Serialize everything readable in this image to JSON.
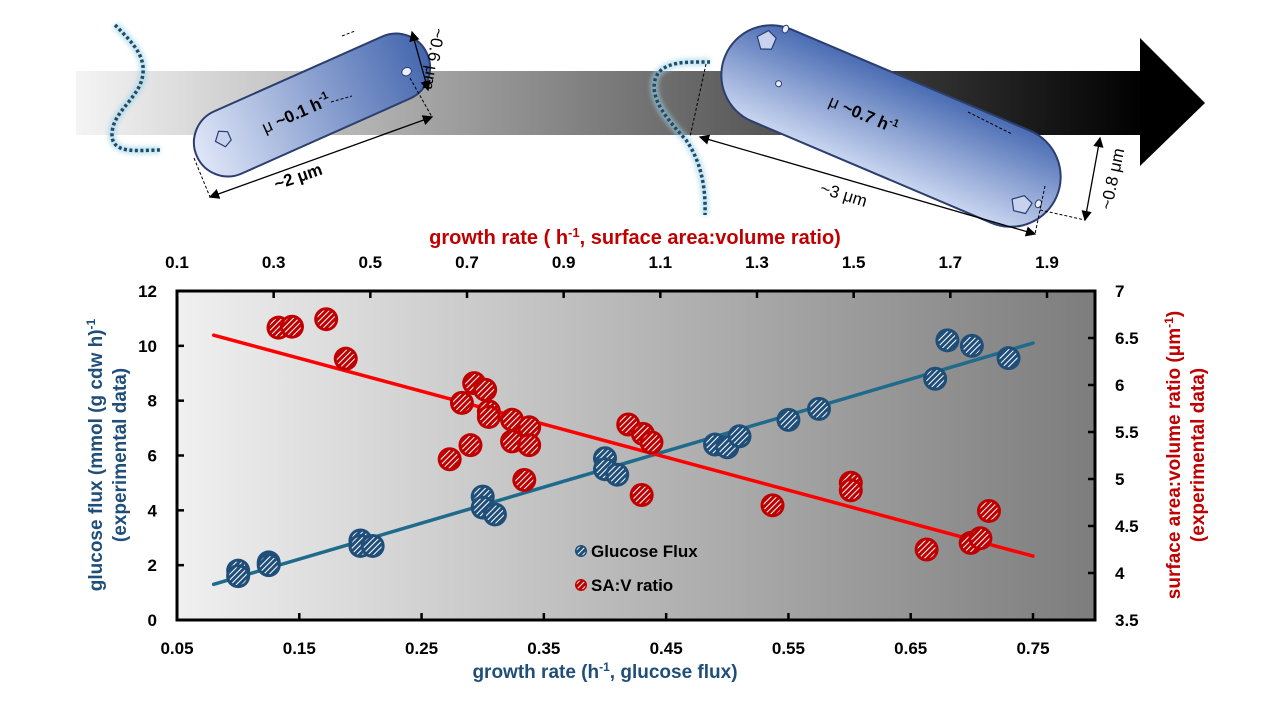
{
  "illustration": {
    "cell_small": {
      "growth_label_prefix": "μ ",
      "growth_label_value": "~0.1 h",
      "growth_label_sup": "-1",
      "length_label": "~2 μm",
      "width_label": "~0.6 μm"
    },
    "cell_large": {
      "growth_label_prefix": "μ ",
      "growth_label_value": "~0.7 h",
      "growth_label_sup": "-1",
      "length_label": "~3 μm",
      "width_label": "~0.8 μm"
    },
    "colors": {
      "cell_fill_light": "#d3dcf3",
      "cell_fill_dark": "#3f62a8",
      "cell_outline": "#2c3e6e",
      "flagellum": "#1e4c66",
      "flagellum_glow": "#9fd3e8",
      "arrow_start": "#f2f2f2",
      "arrow_end": "#000000"
    }
  },
  "chart_data": {
    "type": "scatter",
    "title": "",
    "xlabel": "growth rate (h-1, glucose flux)",
    "xlabel_parts": {
      "pre": "growth rate (h",
      "sup": "-1",
      "post": ", glucose flux)"
    },
    "x2label": "growth rate ( h-1, surface area:volume ratio)",
    "x2label_parts": {
      "pre": "growth rate ( h",
      "sup": "-1",
      "post": ", surface area:volume ratio)"
    },
    "ylabel": "glucose flux (mmol (g cdw h)-1) (experimental data)",
    "ylabel_parts": {
      "line1_pre": "glucose flux (mmol (g cdw h)",
      "line1_sup": "-1",
      "line1_post": "",
      "line2": "(experimental data)"
    },
    "y2label": "surface area:volume ratio (μm-1) (experimental data)",
    "y2label_parts": {
      "line1_pre": "surface area:volume ratio (μm",
      "line1_sup": "-1",
      "line1_post": ")",
      "line2": "(experimental data)"
    },
    "xlim": [
      0.05,
      0.8
    ],
    "x2lim": [
      0.1,
      2.0
    ],
    "ylim": [
      0,
      12
    ],
    "y2lim": [
      3.5,
      7
    ],
    "x_ticks": [
      0.05,
      0.15,
      0.25,
      0.35,
      0.45,
      0.55,
      0.65,
      0.75
    ],
    "x_tick_labels": [
      "0.05",
      "0.15",
      "0.25",
      "0.35",
      "0.45",
      "0.55",
      "0.65",
      "0.75"
    ],
    "x2_ticks": [
      0.1,
      0.3,
      0.5,
      0.7,
      0.9,
      1.1,
      1.3,
      1.5,
      1.7,
      1.9
    ],
    "x2_tick_labels": [
      "0.1",
      "0.3",
      "0.5",
      "0.7",
      "0.9",
      "1.1",
      "1.3",
      "1.5",
      "1.7",
      "1.9"
    ],
    "y_ticks": [
      0,
      2,
      4,
      6,
      8,
      10,
      12
    ],
    "y_tick_labels": [
      "0",
      "2",
      "4",
      "6",
      "8",
      "10",
      "12"
    ],
    "y2_ticks": [
      3.5,
      4,
      4.5,
      5,
      5.5,
      6,
      6.5,
      7
    ],
    "y2_tick_labels": [
      "3.5",
      "4",
      "4.5",
      "5",
      "5.5",
      "6",
      "6.5",
      "7"
    ],
    "grid": false,
    "legend_position": "bottom-center",
    "series": [
      {
        "name": "Glucose Flux",
        "axis": "left",
        "color": "#1f4e79",
        "fit_color": "#1f6b8c",
        "x": [
          0.1,
          0.1,
          0.125,
          0.125,
          0.2,
          0.2,
          0.21,
          0.3,
          0.3,
          0.31,
          0.4,
          0.4,
          0.41,
          0.49,
          0.5,
          0.51,
          0.55,
          0.575,
          0.67,
          0.68,
          0.7,
          0.73
        ],
        "y": [
          1.8,
          1.6,
          2.1,
          2.0,
          2.9,
          2.7,
          2.7,
          4.5,
          4.1,
          3.85,
          5.9,
          5.5,
          5.3,
          6.4,
          6.3,
          6.7,
          7.3,
          7.7,
          8.8,
          10.2,
          10.0,
          9.55
        ],
        "fit": {
          "x": [
            0.08,
            0.75
          ],
          "y": [
            1.3,
            10.1
          ]
        }
      },
      {
        "name": "SA:V ratio",
        "axis": "right",
        "color": "#c00000",
        "fit_color": "#ff0000",
        "x": [
          0.133,
          0.144,
          0.172,
          0.188,
          0.273,
          0.283,
          0.29,
          0.293,
          0.302,
          0.305,
          0.305,
          0.324,
          0.324,
          0.334,
          0.338,
          0.338,
          0.419,
          0.43,
          0.431,
          0.438,
          0.537,
          0.601,
          0.601,
          0.663,
          0.699,
          0.707,
          0.714
        ],
        "y": [
          6.61,
          6.62,
          6.7,
          6.28,
          5.21,
          5.81,
          5.36,
          6.02,
          5.95,
          5.72,
          5.66,
          5.63,
          5.4,
          4.99,
          5.55,
          5.36,
          5.58,
          4.83,
          5.48,
          5.39,
          4.72,
          4.96,
          4.88,
          4.25,
          4.32,
          4.37,
          4.66
        ],
        "fit": {
          "x": [
            0.08,
            0.75
          ],
          "y": [
            6.53,
            4.18
          ]
        }
      }
    ]
  }
}
